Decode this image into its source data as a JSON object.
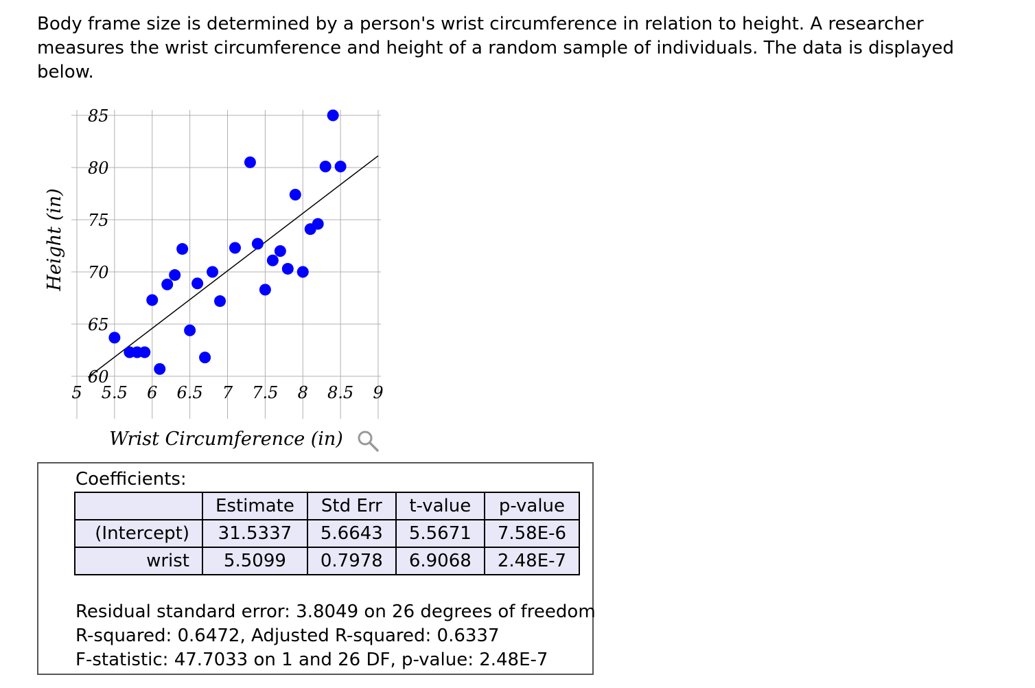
{
  "question": {
    "text": "Body frame size is determined by a person's wrist circumference in relation to height. A researcher measures the wrist circumference and height of a random sample of individuals. The data is displayed below."
  },
  "chart_data": {
    "type": "scatter",
    "title": "",
    "xlabel": "Wrist Circumference (in)",
    "ylabel": "Height (in)",
    "xlim": [
      5,
      9
    ],
    "ylim": [
      60,
      85
    ],
    "xticks": [
      "5",
      "5.5",
      "6",
      "6.5",
      "7",
      "7.5",
      "8",
      "8.5",
      "9"
    ],
    "yticks": [
      "60",
      "65",
      "70",
      "75",
      "80",
      "85"
    ],
    "grid": true,
    "point_color": "#0000ff",
    "line_color": "#000000",
    "points": [
      {
        "x": 5.5,
        "y": 63.7
      },
      {
        "x": 5.7,
        "y": 62.3
      },
      {
        "x": 5.8,
        "y": 62.3
      },
      {
        "x": 5.9,
        "y": 62.3
      },
      {
        "x": 6.0,
        "y": 67.3
      },
      {
        "x": 6.1,
        "y": 60.7
      },
      {
        "x": 6.2,
        "y": 68.8
      },
      {
        "x": 6.3,
        "y": 69.7
      },
      {
        "x": 6.4,
        "y": 72.2
      },
      {
        "x": 6.5,
        "y": 64.4
      },
      {
        "x": 6.6,
        "y": 68.9
      },
      {
        "x": 6.7,
        "y": 61.8
      },
      {
        "x": 6.8,
        "y": 70.0
      },
      {
        "x": 6.9,
        "y": 67.2
      },
      {
        "x": 7.1,
        "y": 72.3
      },
      {
        "x": 7.3,
        "y": 80.5
      },
      {
        "x": 7.4,
        "y": 72.7
      },
      {
        "x": 7.5,
        "y": 68.3
      },
      {
        "x": 7.6,
        "y": 71.1
      },
      {
        "x": 7.7,
        "y": 72.0
      },
      {
        "x": 7.8,
        "y": 70.3
      },
      {
        "x": 7.9,
        "y": 77.4
      },
      {
        "x": 8.0,
        "y": 70.0
      },
      {
        "x": 8.1,
        "y": 74.1
      },
      {
        "x": 8.2,
        "y": 74.6
      },
      {
        "x": 8.3,
        "y": 80.1
      },
      {
        "x": 8.4,
        "y": 85.0
      },
      {
        "x": 8.5,
        "y": 80.1
      }
    ],
    "regression": {
      "intercept": 31.5337,
      "slope": 5.5099
    }
  },
  "icons": {
    "zoom": "magnifier-icon"
  },
  "coefficients": {
    "title": "Coefficients:",
    "headers": [
      "Estimate",
      "Std Err",
      "t-value",
      "p-value"
    ],
    "rows": [
      {
        "name": "(Intercept)",
        "values": [
          "31.5337",
          "5.6643",
          "5.5671",
          "7.58E-6"
        ]
      },
      {
        "name": "wrist",
        "values": [
          "5.5099",
          "0.7978",
          "6.9068",
          "2.48E-7"
        ]
      }
    ]
  },
  "summary": {
    "rse": "Residual standard error: 3.8049 on 26 degrees of freedom",
    "rsq": "R-squared: 0.6472, Adjusted R-squared: 0.6337",
    "fstat": "F-statistic: 47.7033 on 1 and 26 DF, p-value: 2.48E-7"
  }
}
